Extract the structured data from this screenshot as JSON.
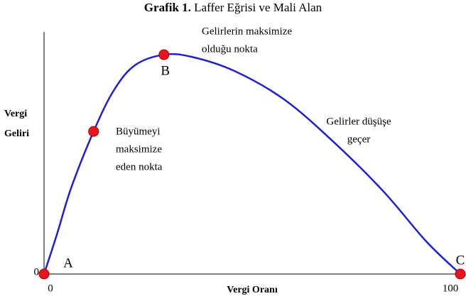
{
  "chart_data": {
    "type": "line",
    "title": {
      "number": "Grafik 1.",
      "text": "Laffer Eğrisi ve Mali Alan"
    },
    "xlabel": "Vergi Oranı",
    "ylabel": [
      "Vergi",
      "Geliri"
    ],
    "xlim": [
      0,
      100
    ],
    "ylim": [
      0,
      100
    ],
    "xticks": [
      0,
      100
    ],
    "yticks": [
      0
    ],
    "color": "#1f1fd0",
    "x": [
      0,
      3.1,
      6.5,
      11.9,
      16.7,
      21.8,
      28.8,
      35.5,
      45.7,
      57.7,
      69.6,
      81.6,
      91.8,
      100
    ],
    "values": [
      0,
      16.4,
      35.5,
      58.9,
      75.7,
      86.2,
      90.6,
      89.7,
      83.9,
      72.1,
      54.5,
      34.0,
      13.5,
      0
    ],
    "markers": {
      "color": "#e8141e",
      "x": [
        0,
        11.9,
        28.8,
        100
      ],
      "values": [
        0,
        58.9,
        90.6,
        0
      ],
      "labels": [
        "A",
        null,
        "B",
        "C"
      ]
    },
    "annotations": [
      {
        "lines": [
          "Gelirlerin maksimize",
          "olduğu nokta"
        ]
      },
      {
        "lines": [
          "Büyümeyi",
          "maksimize",
          "eden nokta"
        ]
      },
      {
        "lines": [
          "Gelirler düşüşe",
          "geçer"
        ]
      }
    ]
  }
}
